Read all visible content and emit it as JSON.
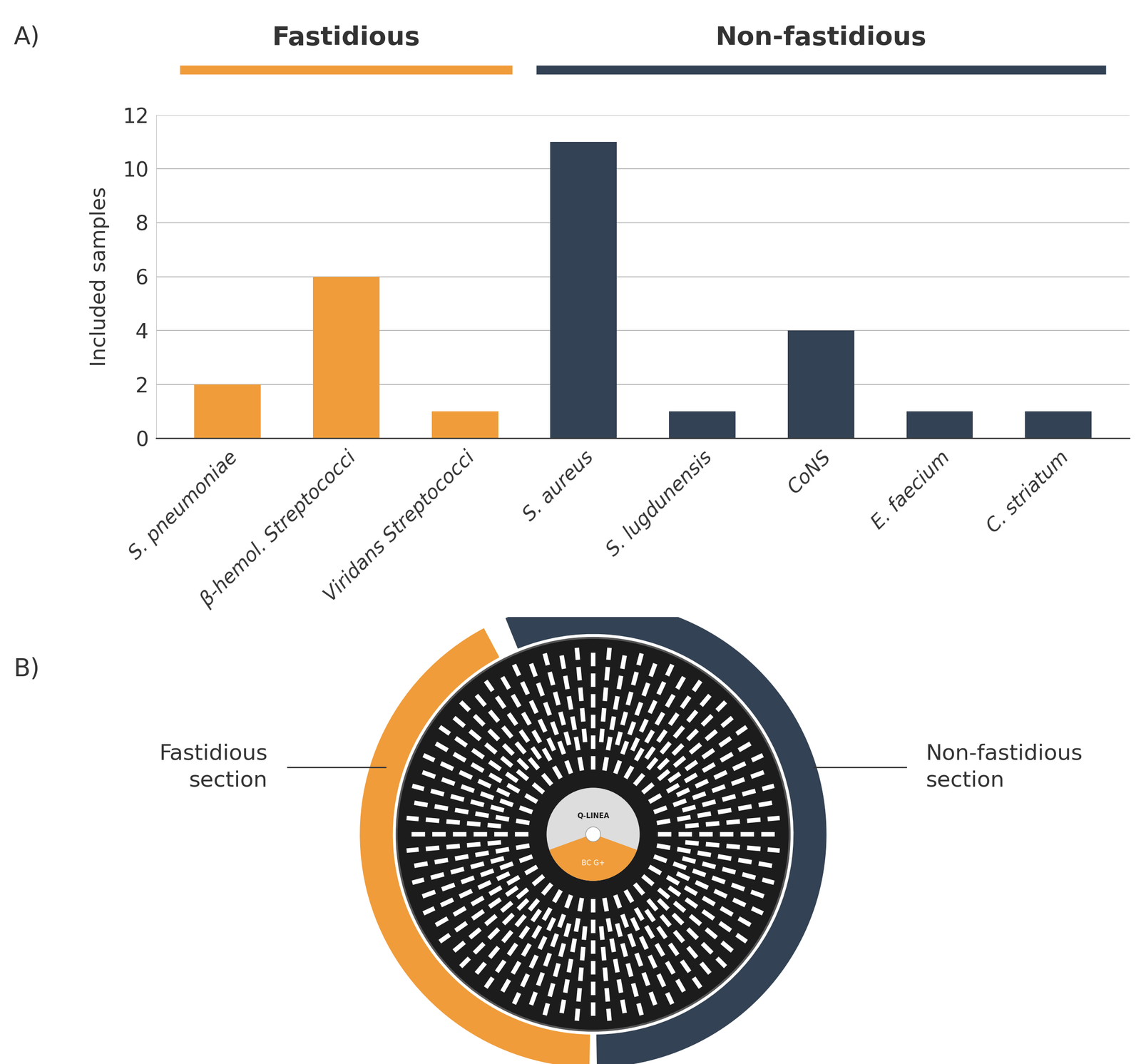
{
  "chart_data": {
    "type": "bar",
    "panel_label": "A)",
    "categories": [
      "S. pneumoniae",
      "β-hemol. Streptococci",
      "Viridans Streptococci",
      "S. aureus",
      "S. lugdunensis",
      "CoNS",
      "E. faecium",
      "C. striatum"
    ],
    "values": [
      2,
      6,
      1,
      11,
      1,
      4,
      1,
      1
    ],
    "colors": [
      "#f09c3a",
      "#f09c3a",
      "#f09c3a",
      "#334254",
      "#334254",
      "#334254",
      "#334254",
      "#334254"
    ],
    "ylabel": "Included samples",
    "ylim": [
      0,
      12
    ],
    "yticks": [
      0,
      2,
      4,
      6,
      8,
      10,
      12
    ],
    "grid": true,
    "groups": [
      {
        "name": "Fastidious",
        "color": "#f09c3a",
        "categories": [
          "S. pneumoniae",
          "β-hemol. Streptococci",
          "Viridans Streptococci"
        ]
      },
      {
        "name": "Non-fastidious",
        "color": "#334254",
        "categories": [
          "S. aureus",
          "S. lugdunensis",
          "CoNS",
          "E. faecium",
          "C. striatum"
        ]
      }
    ]
  },
  "diagram": {
    "panel_label": "B)",
    "sections": [
      {
        "label": "Fastidious section",
        "color": "#f09c3a"
      },
      {
        "label": "Non-fastidious section",
        "color": "#334254"
      }
    ],
    "disc_texts": [
      "Q-LINEA",
      "BC G+"
    ]
  }
}
